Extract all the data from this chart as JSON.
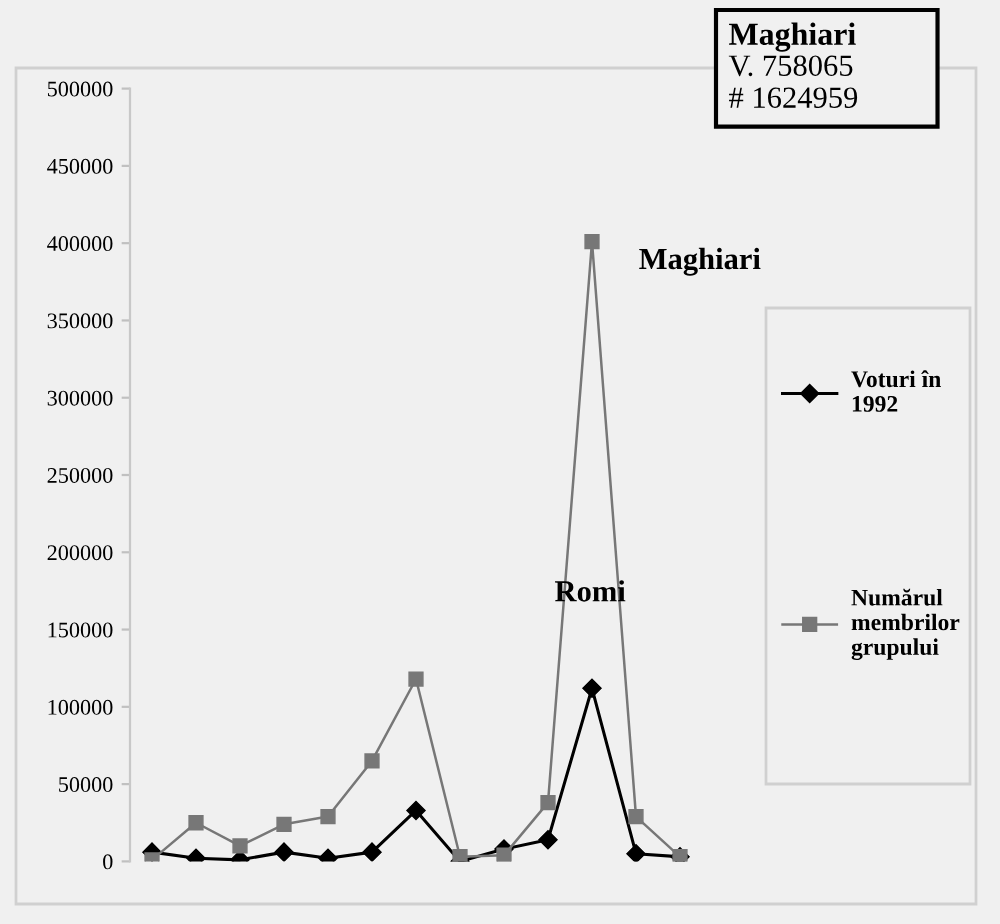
{
  "chart_data": {
    "type": "line",
    "categories": [
      null,
      null,
      null,
      null,
      null,
      null,
      null,
      null,
      null,
      null,
      null,
      null,
      null,
      null
    ],
    "series": [
      {
        "name": "Voturi în 1992",
        "color": "#000000",
        "marker": "diamond",
        "values": [
          6000,
          2000,
          1000,
          6000,
          2000,
          6000,
          33000,
          0,
          8000,
          14000,
          112000,
          5000,
          3000,
          null
        ]
      },
      {
        "name": "Numărul membrilor grupului",
        "color": "#777777",
        "marker": "square",
        "values": [
          1000,
          25000,
          10000,
          24000,
          29000,
          65000,
          118000,
          3000,
          4000,
          38000,
          401000,
          29000,
          3000,
          null
        ]
      }
    ],
    "ylim": [
      0,
      500000
    ],
    "yticks": [
      0,
      50000,
      100000,
      150000,
      200000,
      250000,
      300000,
      350000,
      400000,
      450000,
      500000
    ],
    "legend": "right",
    "tick_labels": "y",
    "grid": false,
    "line_style": "solid",
    "annotations": [
      "Romi",
      "Maghiari",
      "Maghiari\nV. 758065\n# 1624959"
    ]
  }
}
